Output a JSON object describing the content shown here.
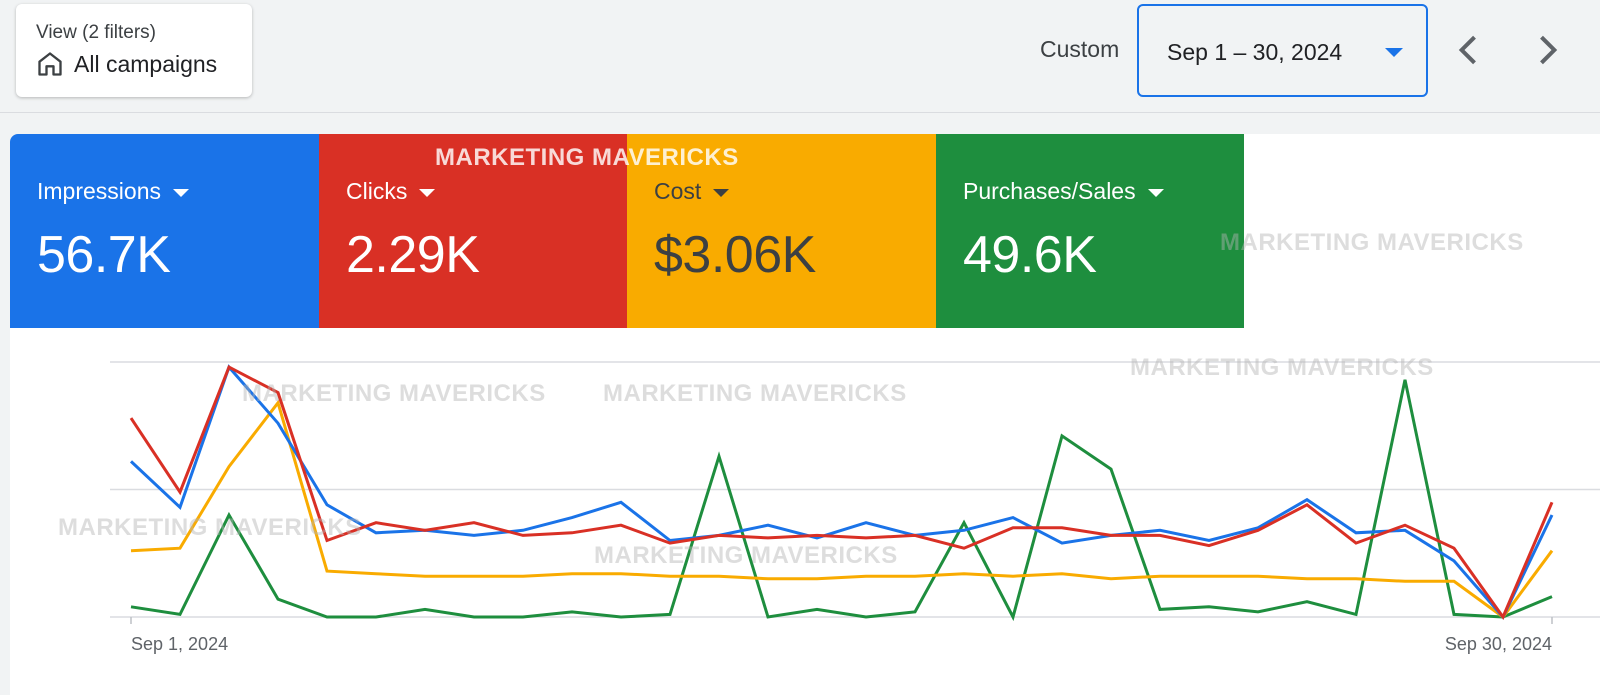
{
  "filter_view": {
    "subtitle": "View (2 filters)",
    "title": "All campaigns",
    "icon": "home-icon"
  },
  "date_range": {
    "mode_label": "Custom",
    "value": "Sep 1 – 30, 2024",
    "accent": "#1a73e8"
  },
  "metrics": [
    {
      "label": "Impressions",
      "value": "56.7K",
      "color": "#1a73e8",
      "text_color": "#ffffff"
    },
    {
      "label": "Clicks",
      "value": "2.29K",
      "color": "#d93025",
      "text_color": "#ffffff"
    },
    {
      "label": "Cost",
      "value": "$3.06K",
      "color": "#f9ab00",
      "text_color": "#3c4043"
    },
    {
      "label": "Purchases/Sales",
      "value": "49.6K",
      "color": "#1e8e3e",
      "text_color": "#ffffff"
    }
  ],
  "watermark": "MARKETING MAVERICKS",
  "chart_data": {
    "type": "line",
    "x": [
      "2024-09-01",
      "2024-09-02",
      "2024-09-03",
      "2024-09-04",
      "2024-09-05",
      "2024-09-06",
      "2024-09-07",
      "2024-09-08",
      "2024-09-09",
      "2024-09-10",
      "2024-09-11",
      "2024-09-12",
      "2024-09-13",
      "2024-09-14",
      "2024-09-15",
      "2024-09-16",
      "2024-09-17",
      "2024-09-18",
      "2024-09-19",
      "2024-09-20",
      "2024-09-21",
      "2024-09-22",
      "2024-09-23",
      "2024-09-24",
      "2024-09-25",
      "2024-09-26",
      "2024-09-27",
      "2024-09-28",
      "2024-09-29",
      "2024-09-30"
    ],
    "x_tick_labels": [
      "Sep 1, 2024",
      "Sep 30, 2024"
    ],
    "ylim": [
      0,
      100
    ],
    "grid": true,
    "series": [
      {
        "name": "Impressions",
        "color": "#1a73e8",
        "values": [
          61,
          43,
          98,
          76,
          44,
          33,
          34,
          32,
          34,
          39,
          45,
          30,
          32,
          36,
          31,
          37,
          32,
          34,
          39,
          29,
          32,
          34,
          30,
          35,
          46,
          33,
          34,
          22,
          0,
          40
        ]
      },
      {
        "name": "Clicks",
        "color": "#d93025",
        "values": [
          78,
          49,
          98,
          88,
          30,
          37,
          34,
          37,
          32,
          33,
          36,
          29,
          32,
          31,
          32,
          31,
          32,
          27,
          35,
          35,
          32,
          32,
          28,
          34,
          44,
          29,
          36,
          27,
          0,
          45
        ]
      },
      {
        "name": "Cost",
        "color": "#f9ab00",
        "values": [
          26,
          27,
          59,
          84,
          18,
          17,
          16,
          16,
          16,
          17,
          17,
          16,
          16,
          15,
          15,
          16,
          16,
          17,
          16,
          17,
          15,
          16,
          16,
          16,
          15,
          15,
          14,
          14,
          0,
          26
        ]
      },
      {
        "name": "Purchases/Sales",
        "color": "#1e8e3e",
        "values": [
          4,
          1,
          40,
          7,
          0,
          0,
          3,
          0,
          0,
          2,
          0,
          1,
          63,
          0,
          3,
          0,
          2,
          37,
          0,
          71,
          58,
          3,
          4,
          2,
          6,
          1,
          93,
          1,
          0,
          8
        ]
      }
    ]
  }
}
